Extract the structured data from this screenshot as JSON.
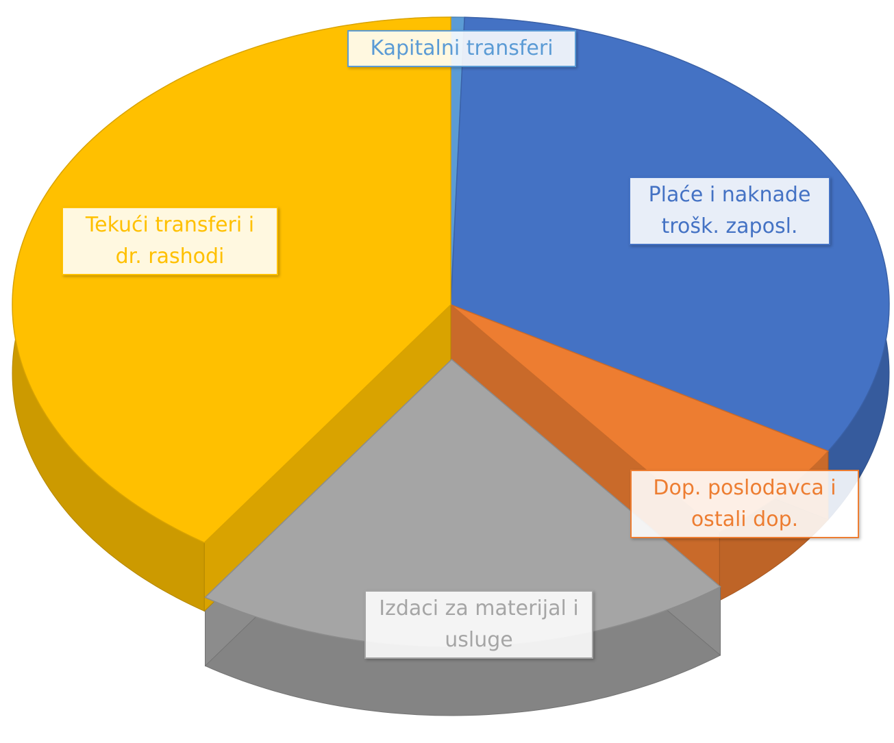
{
  "chart_data": {
    "type": "pie3d",
    "categories": [
      "Kapitalni transferi",
      "Plaće i naknade trošk. zaposl.",
      "Dop. poslodavca i ostali dop.",
      "Izdaci za materijal i usluge",
      "Tekući transferi i dr. rashodi"
    ],
    "values": [
      0.5,
      33,
      6,
      20,
      40.5
    ],
    "colors": [
      "#5b9bd5",
      "#4472c4",
      "#ed7d31",
      "#a5a5a5",
      "#ffc000"
    ],
    "exploded": [
      3
    ]
  }
}
